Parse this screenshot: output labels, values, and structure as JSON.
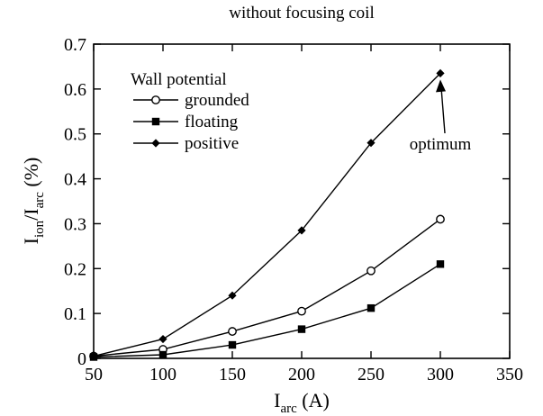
{
  "chart_data": {
    "type": "line",
    "title": "without focusing coil",
    "xlabel": {
      "main": "I",
      "sub": "arc",
      "unit": " (A)"
    },
    "ylabel": {
      "main1": "I",
      "sub1": "ion",
      "slash": "/I",
      "sub2": "arc",
      "unit": " (%)"
    },
    "xlim": [
      50,
      350
    ],
    "ylim": [
      0,
      0.7
    ],
    "xticks": [
      50,
      100,
      150,
      200,
      250,
      300,
      350
    ],
    "yticks": [
      0,
      0.1,
      0.2,
      0.3,
      0.4,
      0.5,
      0.6,
      0.7
    ],
    "xtick_labels": [
      "50",
      "100",
      "150",
      "200",
      "250",
      "300",
      "350"
    ],
    "ytick_labels": [
      "0",
      "0.1",
      "0.2",
      "0.3",
      "0.4",
      "0.5",
      "0.6",
      "0.7"
    ],
    "grid": false,
    "legend": {
      "title": "Wall potential",
      "placement": "top-left"
    },
    "series": [
      {
        "name": "grounded",
        "marker": "open-circle",
        "x": [
          50,
          100,
          150,
          200,
          250,
          300
        ],
        "y": [
          0.005,
          0.02,
          0.06,
          0.105,
          0.195,
          0.31
        ]
      },
      {
        "name": "floating",
        "marker": "filled-square",
        "x": [
          50,
          100,
          150,
          200,
          250,
          300
        ],
        "y": [
          0.003,
          0.008,
          0.03,
          0.065,
          0.112,
          0.21
        ]
      },
      {
        "name": "positive",
        "marker": "filled-diamond",
        "x": [
          50,
          100,
          150,
          200,
          250,
          300
        ],
        "y": [
          0.005,
          0.043,
          0.14,
          0.285,
          0.48,
          0.635
        ]
      }
    ],
    "annotations": [
      {
        "text": "optimum",
        "x": 300,
        "y": 0.635
      }
    ]
  }
}
